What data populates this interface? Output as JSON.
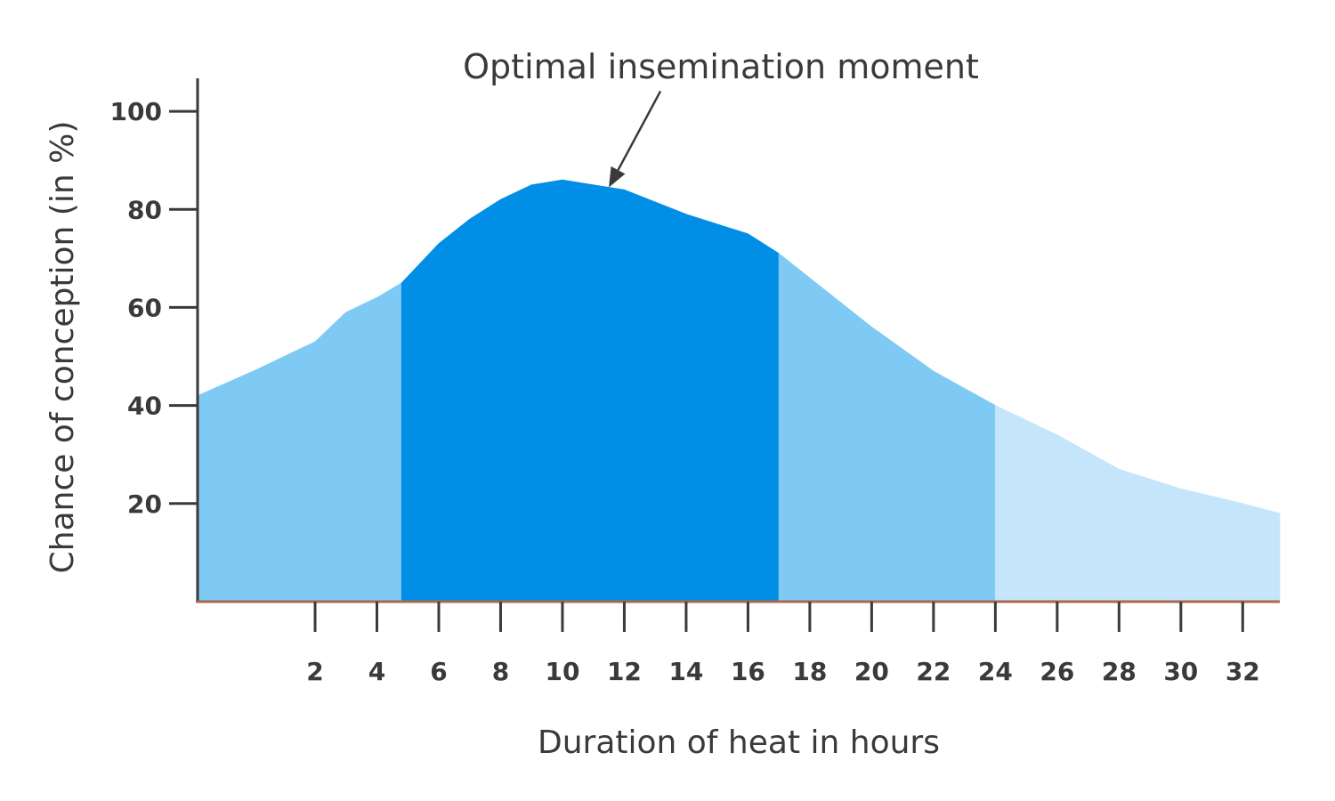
{
  "chart_data": {
    "type": "area",
    "title": "",
    "annotation": "Optimal insemination moment",
    "annotation_x": 11.5,
    "xlabel": "Duration of heat in hours",
    "ylabel": "Chance of conception (in %)",
    "xlim": [
      -1.8,
      33.2
    ],
    "ylim": [
      -2,
      108
    ],
    "x_ticks": [
      2,
      4,
      6,
      8,
      10,
      12,
      14,
      16,
      18,
      20,
      22,
      24,
      26,
      28,
      30,
      32
    ],
    "y_ticks": [
      20,
      40,
      60,
      80,
      100
    ],
    "grid": false,
    "curve": [
      {
        "x": -1.8,
        "y": 42
      },
      {
        "x": 0,
        "y": 47
      },
      {
        "x": 2,
        "y": 53
      },
      {
        "x": 3,
        "y": 59
      },
      {
        "x": 4,
        "y": 62
      },
      {
        "x": 4.8,
        "y": 65
      },
      {
        "x": 6,
        "y": 73
      },
      {
        "x": 7,
        "y": 78
      },
      {
        "x": 8,
        "y": 82
      },
      {
        "x": 9,
        "y": 85
      },
      {
        "x": 10,
        "y": 86
      },
      {
        "x": 11,
        "y": 85
      },
      {
        "x": 12,
        "y": 84
      },
      {
        "x": 14,
        "y": 79
      },
      {
        "x": 16,
        "y": 75
      },
      {
        "x": 17,
        "y": 71
      },
      {
        "x": 18,
        "y": 66
      },
      {
        "x": 20,
        "y": 56
      },
      {
        "x": 22,
        "y": 47
      },
      {
        "x": 24,
        "y": 40
      },
      {
        "x": 26,
        "y": 34
      },
      {
        "x": 28,
        "y": 27
      },
      {
        "x": 30,
        "y": 23
      },
      {
        "x": 32,
        "y": 20
      },
      {
        "x": 33.2,
        "y": 18
      }
    ],
    "bands": [
      {
        "from": -1.8,
        "to": 4.8,
        "color": "#7ecaf5"
      },
      {
        "from": 4.8,
        "to": 17,
        "color": "#008ee6"
      },
      {
        "from": 17,
        "to": 24,
        "color": "#7ecaf5"
      },
      {
        "from": 24,
        "to": 33.2,
        "color": "#c5e6fa"
      }
    ],
    "axis_color": "#3a3a3a",
    "baseline_color": "#a86a4a"
  }
}
